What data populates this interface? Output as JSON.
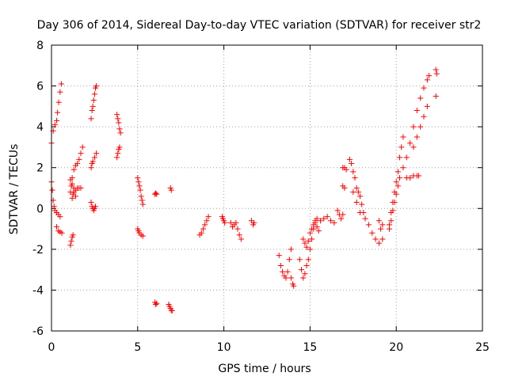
{
  "chart_data": {
    "type": "scatter",
    "title": "Day 306 of 2014, Sidereal Day-to-day VTEC variation (SDTVAR) for receiver str2",
    "xlabel": "GPS time / hours",
    "ylabel": "SDTVAR / TECUs",
    "xlim": [
      0,
      25
    ],
    "ylim": [
      -6,
      8
    ],
    "xticks": [
      "0",
      "5",
      "10",
      "15",
      "20",
      "25"
    ],
    "yticks": [
      "-6",
      "-4",
      "-2",
      "0",
      "2",
      "4",
      "6",
      "8"
    ],
    "grid": true,
    "legend": "none",
    "marker": "plus",
    "color": "#ff0000",
    "segments": [
      [
        [
          0.0,
          3.2
        ],
        [
          0.1,
          3.8
        ],
        [
          0.2,
          4.1
        ],
        [
          0.3,
          4.3
        ],
        [
          0.35,
          4.7
        ],
        [
          0.42,
          5.2
        ],
        [
          0.5,
          5.7
        ],
        [
          0.57,
          6.1
        ]
      ],
      [
        [
          0.0,
          1.3
        ],
        [
          0.05,
          0.9
        ],
        [
          0.1,
          0.4
        ],
        [
          0.15,
          0.1
        ],
        [
          0.2,
          -0.1
        ],
        [
          0.3,
          -0.2
        ],
        [
          0.4,
          -0.3
        ],
        [
          0.5,
          -0.4
        ]
      ],
      [
        [
          0.3,
          -0.9
        ],
        [
          0.4,
          -1.1
        ],
        [
          0.5,
          -1.15
        ],
        [
          0.6,
          -1.2
        ]
      ],
      [
        [
          1.1,
          -1.8
        ],
        [
          1.15,
          -1.6
        ],
        [
          1.2,
          -1.4
        ],
        [
          1.25,
          -1.3
        ]
      ],
      [
        [
          1.1,
          0.8
        ],
        [
          1.15,
          1.1
        ],
        [
          1.2,
          1.5
        ],
        [
          1.3,
          1.9
        ],
        [
          1.4,
          2.1
        ],
        [
          1.5,
          2.2
        ],
        [
          1.6,
          2.4
        ],
        [
          1.7,
          2.7
        ],
        [
          1.8,
          3.0
        ]
      ],
      [
        [
          1.1,
          1.4
        ],
        [
          1.2,
          1.2
        ],
        [
          1.3,
          1.0
        ],
        [
          1.4,
          0.9
        ],
        [
          1.5,
          1.0
        ],
        [
          1.6,
          1.0
        ],
        [
          1.7,
          1.0
        ]
      ],
      [
        [
          1.2,
          0.5
        ],
        [
          1.25,
          0.7
        ],
        [
          1.3,
          0.8
        ],
        [
          1.4,
          0.6
        ]
      ],
      [
        [
          2.3,
          4.4
        ],
        [
          2.35,
          4.8
        ],
        [
          2.4,
          5.0
        ],
        [
          2.45,
          5.3
        ],
        [
          2.5,
          5.6
        ],
        [
          2.55,
          5.9
        ],
        [
          2.6,
          6.0
        ]
      ],
      [
        [
          2.3,
          2.0
        ],
        [
          2.35,
          2.2
        ],
        [
          2.4,
          2.3
        ],
        [
          2.5,
          2.5
        ],
        [
          2.6,
          2.7
        ]
      ],
      [
        [
          2.3,
          0.3
        ],
        [
          2.35,
          0.1
        ],
        [
          2.4,
          0.0
        ],
        [
          2.45,
          -0.1
        ],
        [
          2.5,
          0.0
        ],
        [
          2.55,
          0.1
        ]
      ],
      [
        [
          3.8,
          4.6
        ],
        [
          3.85,
          4.4
        ],
        [
          3.9,
          4.2
        ],
        [
          3.95,
          3.9
        ],
        [
          4.0,
          3.7
        ]
      ],
      [
        [
          3.8,
          2.5
        ],
        [
          3.85,
          2.7
        ],
        [
          3.9,
          2.9
        ],
        [
          3.95,
          3.0
        ]
      ],
      [
        [
          5.0,
          1.5
        ],
        [
          5.05,
          1.3
        ],
        [
          5.1,
          1.1
        ],
        [
          5.15,
          0.9
        ],
        [
          5.2,
          0.6
        ],
        [
          5.25,
          0.4
        ],
        [
          5.3,
          0.2
        ]
      ],
      [
        [
          5.0,
          -1.0
        ],
        [
          5.05,
          -1.1
        ],
        [
          5.1,
          -1.2
        ],
        [
          5.2,
          -1.3
        ],
        [
          5.3,
          -1.35
        ]
      ],
      [
        [
          6.0,
          0.7
        ],
        [
          6.05,
          0.75
        ],
        [
          6.1,
          0.7
        ]
      ],
      [
        [
          6.0,
          -4.6
        ],
        [
          6.05,
          -4.7
        ],
        [
          6.1,
          -4.65
        ]
      ],
      [
        [
          6.9,
          1.0
        ],
        [
          6.95,
          0.9
        ]
      ],
      [
        [
          6.8,
          -4.7
        ],
        [
          6.85,
          -4.8
        ],
        [
          6.9,
          -4.9
        ],
        [
          6.95,
          -5.0
        ],
        [
          7.0,
          -5.0
        ]
      ],
      [
        [
          8.6,
          -1.3
        ],
        [
          8.7,
          -1.2
        ],
        [
          8.8,
          -1.0
        ],
        [
          8.9,
          -0.8
        ],
        [
          9.0,
          -0.6
        ],
        [
          9.1,
          -0.4
        ]
      ],
      [
        [
          9.9,
          -0.4
        ],
        [
          9.95,
          -0.5
        ],
        [
          10.0,
          -0.6
        ],
        [
          10.05,
          -0.7
        ]
      ],
      [
        [
          10.4,
          -0.7
        ],
        [
          10.5,
          -0.9
        ],
        [
          10.6,
          -0.8
        ],
        [
          10.7,
          -0.7
        ],
        [
          10.8,
          -1.0
        ],
        [
          10.9,
          -1.3
        ],
        [
          11.0,
          -1.5
        ]
      ],
      [
        [
          11.6,
          -0.6
        ],
        [
          11.7,
          -0.8
        ],
        [
          11.75,
          -0.7
        ]
      ],
      [
        [
          13.2,
          -2.3
        ],
        [
          13.3,
          -2.8
        ],
        [
          13.4,
          -3.1
        ],
        [
          13.5,
          -3.3
        ],
        [
          13.6,
          -3.4
        ],
        [
          13.7,
          -3.1
        ],
        [
          13.8,
          -2.5
        ],
        [
          13.9,
          -2.0
        ]
      ],
      [
        [
          13.9,
          -3.4
        ],
        [
          14.0,
          -3.7
        ],
        [
          14.05,
          -3.8
        ]
      ],
      [
        [
          14.4,
          -2.5
        ],
        [
          14.5,
          -3.0
        ],
        [
          14.6,
          -3.4
        ],
        [
          14.7,
          -3.2
        ],
        [
          14.8,
          -2.8
        ],
        [
          14.9,
          -2.5
        ],
        [
          15.0,
          -2.0
        ],
        [
          15.1,
          -1.5
        ],
        [
          15.2,
          -1.0
        ],
        [
          15.3,
          -0.6
        ],
        [
          15.4,
          -0.5
        ]
      ],
      [
        [
          14.6,
          -1.5
        ],
        [
          14.7,
          -1.7
        ],
        [
          14.8,
          -1.9
        ],
        [
          14.9,
          -1.6
        ],
        [
          15.0,
          -1.2
        ],
        [
          15.1,
          -1.0
        ],
        [
          15.2,
          -0.8
        ],
        [
          15.3,
          -0.7
        ],
        [
          15.4,
          -0.9
        ],
        [
          15.5,
          -1.1
        ]
      ],
      [
        [
          15.6,
          -0.6
        ],
        [
          15.8,
          -0.5
        ],
        [
          16.0,
          -0.4
        ],
        [
          16.2,
          -0.6
        ],
        [
          16.4,
          -0.7
        ]
      ],
      [
        [
          16.6,
          -0.1
        ],
        [
          16.7,
          -0.3
        ],
        [
          16.8,
          -0.5
        ],
        [
          16.9,
          -0.3
        ]
      ],
      [
        [
          16.9,
          2.0
        ],
        [
          17.0,
          2.0
        ],
        [
          17.1,
          1.9
        ]
      ],
      [
        [
          16.9,
          1.1
        ],
        [
          17.0,
          1.0
        ]
      ],
      [
        [
          17.3,
          2.4
        ],
        [
          17.4,
          2.2
        ],
        [
          17.5,
          1.8
        ],
        [
          17.6,
          1.5
        ],
        [
          17.7,
          1.0
        ],
        [
          17.8,
          0.8
        ],
        [
          17.9,
          0.6
        ],
        [
          18.0,
          0.2
        ],
        [
          18.1,
          -0.2
        ]
      ],
      [
        [
          17.5,
          0.8
        ],
        [
          17.7,
          0.3
        ],
        [
          17.9,
          -0.2
        ]
      ],
      [
        [
          18.2,
          -0.5
        ],
        [
          18.4,
          -0.8
        ],
        [
          18.6,
          -1.2
        ],
        [
          18.8,
          -1.5
        ],
        [
          19.0,
          -1.7
        ],
        [
          19.2,
          -1.5
        ]
      ],
      [
        [
          19.0,
          -0.6
        ],
        [
          19.1,
          -1.0
        ],
        [
          19.2,
          -0.8
        ]
      ],
      [
        [
          19.6,
          -0.8
        ],
        [
          19.7,
          -0.2
        ],
        [
          19.8,
          0.3
        ],
        [
          19.9,
          0.8
        ],
        [
          20.0,
          1.3
        ],
        [
          20.1,
          1.8
        ],
        [
          20.2,
          2.5
        ],
        [
          20.3,
          3.0
        ],
        [
          20.4,
          3.5
        ]
      ],
      [
        [
          19.6,
          -1.0
        ],
        [
          19.7,
          -0.6
        ],
        [
          19.8,
          -0.1
        ],
        [
          19.9,
          0.3
        ],
        [
          20.0,
          0.7
        ],
        [
          20.1,
          1.1
        ],
        [
          20.2,
          1.5
        ],
        [
          20.4,
          2.0
        ],
        [
          20.6,
          2.5
        ],
        [
          20.8,
          3.2
        ],
        [
          21.0,
          4.0
        ],
        [
          21.2,
          4.8
        ],
        [
          21.4,
          5.4
        ],
        [
          21.6,
          5.9
        ],
        [
          21.8,
          6.3
        ],
        [
          21.9,
          6.5
        ]
      ],
      [
        [
          20.6,
          1.5
        ],
        [
          20.8,
          1.5
        ],
        [
          21.0,
          1.6
        ],
        [
          21.2,
          1.6
        ],
        [
          21.3,
          1.6
        ]
      ],
      [
        [
          21.0,
          3.0
        ],
        [
          21.2,
          3.5
        ],
        [
          21.4,
          4.0
        ],
        [
          21.6,
          4.5
        ],
        [
          21.8,
          5.0
        ]
      ],
      [
        [
          22.3,
          6.8
        ],
        [
          22.35,
          6.6
        ],
        [
          22.3,
          5.5
        ]
      ]
    ]
  }
}
